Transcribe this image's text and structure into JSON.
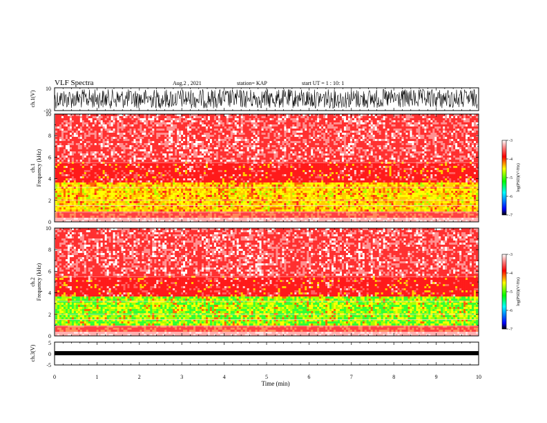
{
  "header": {
    "title": "VLF Spectra",
    "date": "Aug.2 , 2021",
    "station": "station= KAP",
    "start_ut": "start UT = 1 : 10: 1"
  },
  "chart_data": [
    {
      "type": "line",
      "name": "ch1-waveform",
      "ylabel": "ch.1(V)",
      "ylim": [
        -10,
        10
      ],
      "yticks": [
        "10",
        "-10"
      ],
      "xlim": [
        0,
        10
      ],
      "description_visible": "dense noisy waveform spanning roughly -10 to 10 V"
    },
    {
      "type": "heatmap",
      "name": "ch1-spectrogram",
      "ylabel_lines": [
        "ch.1",
        "Frequency (kHz)"
      ],
      "ylim": [
        0,
        10
      ],
      "yticks": [
        "0",
        "2",
        "4",
        "6",
        "8",
        "10"
      ],
      "xlim": [
        0,
        10
      ],
      "colorbar": {
        "label": "log(PSD)(V²/Hz)",
        "range": [
          -7,
          -3
        ],
        "ticks": [
          "-3",
          "-4",
          "-5",
          "-6",
          "-7"
        ]
      }
    },
    {
      "type": "heatmap",
      "name": "ch2-spectrogram",
      "ylabel_lines": [
        "ch.2",
        "Frequency (kHz)"
      ],
      "ylim": [
        0,
        10
      ],
      "yticks": [
        "0",
        "2",
        "4",
        "6",
        "8",
        "10"
      ],
      "xlim": [
        0,
        10
      ],
      "colorbar": {
        "label": "log(PSD)(V²/Hz)",
        "range": [
          -7,
          -3
        ],
        "ticks": [
          "-3",
          "-4",
          "-5",
          "-6",
          "-7"
        ]
      }
    },
    {
      "type": "line",
      "name": "ch3-waveform",
      "ylabel": "ch.3(V)",
      "ylim": [
        -5,
        5
      ],
      "yticks": [
        "5",
        "0",
        "-5"
      ],
      "xlim": [
        0,
        10
      ],
      "description_visible": "flat band near -1 V"
    }
  ],
  "xaxis": {
    "label": "Time (min)",
    "ticks": [
      "0",
      "1",
      "2",
      "3",
      "4",
      "5",
      "6",
      "7",
      "8",
      "9",
      "10"
    ]
  },
  "colors": {
    "high": "#ffffff",
    "mid_high": "#ff2020",
    "mid": "#ffff00",
    "mid_low": "#00ff00",
    "low": "#0000ff",
    "floor": "#000000"
  }
}
